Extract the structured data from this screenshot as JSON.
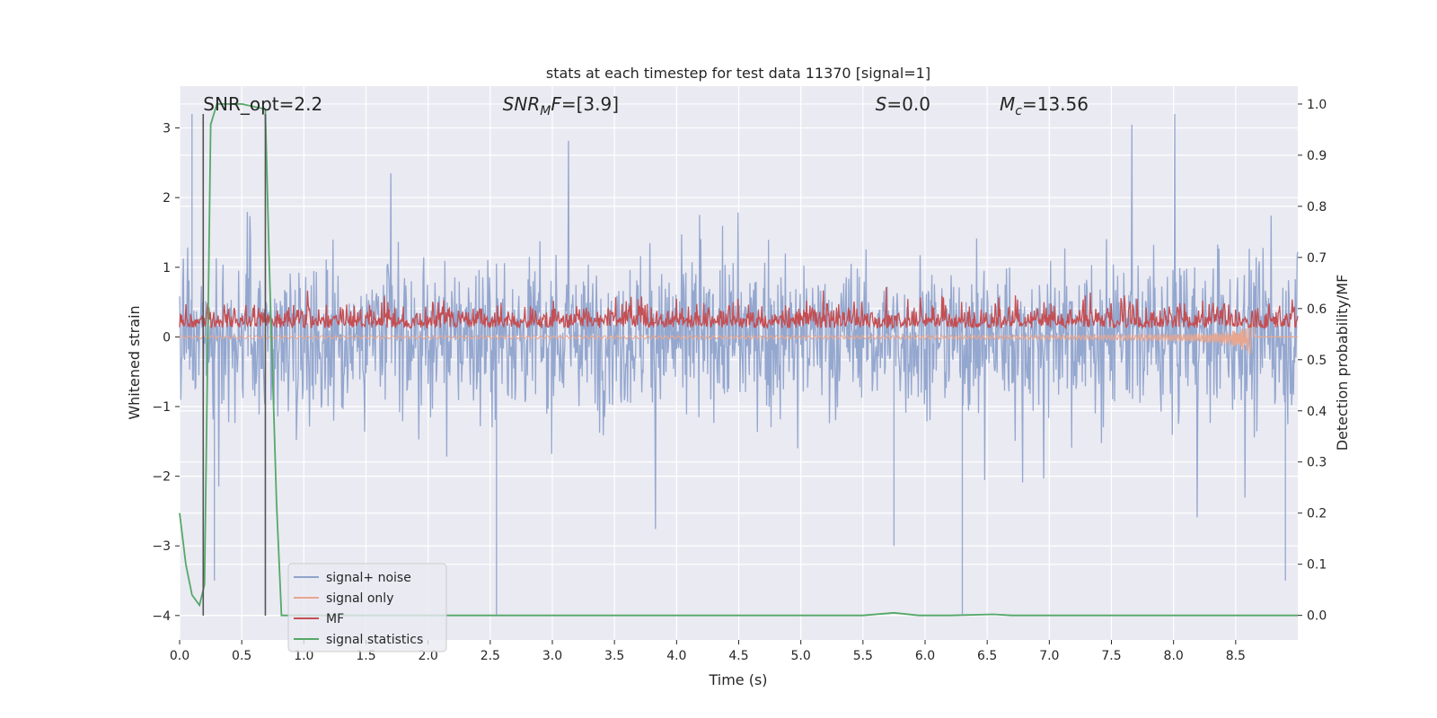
{
  "chart_data": {
    "type": "line",
    "title": "stats at each timestep for test data 11370 [signal=1]",
    "xlabel": "Time (s)",
    "ylabel": "Whitened strain",
    "ylabel_right": "Detection probability/MF",
    "xlim": [
      0.0,
      9.0
    ],
    "ylim": [
      -4.35,
      3.6
    ],
    "ylim_right": [
      -0.048,
      1.035
    ],
    "x_ticks": [
      "0.0",
      "0.5",
      "1.0",
      "1.5",
      "2.0",
      "2.5",
      "3.0",
      "3.5",
      "4.0",
      "4.5",
      "5.0",
      "5.5",
      "6.0",
      "6.5",
      "7.0",
      "7.5",
      "8.0",
      "8.5"
    ],
    "y_ticks": [
      "3",
      "2",
      "1",
      "0",
      "−1",
      "−2",
      "−3",
      "−4"
    ],
    "y_ticks_right": [
      "1.0",
      "0.9",
      "0.8",
      "0.7",
      "0.6",
      "0.5",
      "0.4",
      "0.3",
      "0.2",
      "0.1",
      "0.0"
    ],
    "grid": true,
    "background": "#eaeaf2",
    "annotations": [
      {
        "text": "SNR_opt=2.2",
        "x": 0.19
      },
      {
        "text": "SNR_MF=[3.9]",
        "main": "SNR",
        "sub": "M",
        "tail": "F=[3.9]",
        "x": 2.6
      },
      {
        "text": "S=0.0",
        "main": "S",
        "tail": "=0.0",
        "x": 5.6
      },
      {
        "text": "M_c=13.56",
        "main": "M",
        "sub": "c",
        "tail": "=13.56",
        "x": 6.6
      }
    ],
    "vlines": [
      0.19,
      0.69
    ],
    "legend": {
      "placement": "lower left",
      "entries": [
        "signal+ noise",
        "signal only",
        "MF",
        "signal statistics"
      ]
    },
    "series": [
      {
        "name": "signal+ noise",
        "axis": "left",
        "color": "#8fa3cc",
        "style": "noise",
        "y_range_typical": [
          -2.0,
          2.0
        ],
        "y_extremes": [
          -4.0,
          3.2
        ]
      },
      {
        "name": "signal only",
        "axis": "left",
        "color": "#e8a68f",
        "style": "chirp",
        "y_end_min": -0.3,
        "chirp_end_x": 8.65
      },
      {
        "name": "MF",
        "axis": "right",
        "color": "#c44e52",
        "style": "noise",
        "y_range_typical": [
          0.55,
          0.67
        ],
        "y_extremes": [
          0.55,
          0.69
        ]
      },
      {
        "name": "signal statistics",
        "axis": "right",
        "color": "#55a868",
        "x": [
          0.0,
          0.05,
          0.1,
          0.16,
          0.2,
          0.25,
          0.3,
          0.35,
          0.5,
          0.69,
          0.72,
          0.78,
          0.82,
          0.9,
          1.5,
          3.0,
          5.0,
          5.5,
          5.75,
          5.95,
          6.2,
          6.55,
          6.7,
          7.0,
          8.0,
          9.0
        ],
        "y": [
          0.2,
          0.1,
          0.04,
          0.02,
          0.06,
          0.96,
          1.0,
          1.0,
          1.0,
          0.99,
          0.7,
          0.22,
          0.0,
          0.0,
          0.0,
          0.0,
          0.0,
          0.0,
          0.005,
          0.0,
          0.0,
          0.002,
          0.0,
          0.0,
          0.0,
          0.0
        ]
      }
    ]
  }
}
